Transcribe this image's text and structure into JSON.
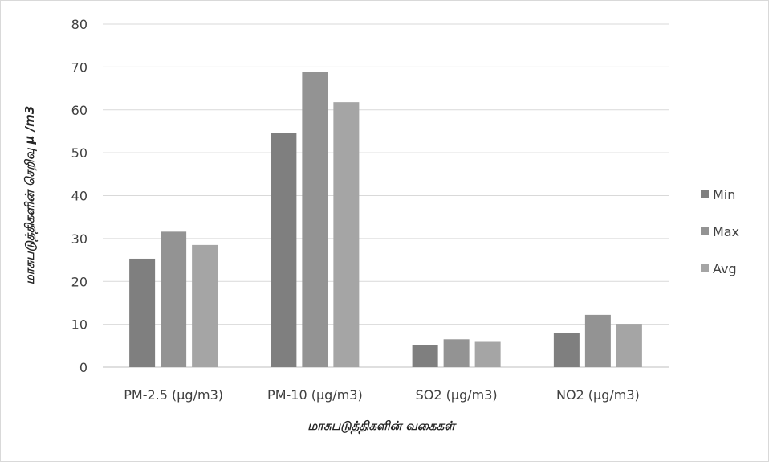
{
  "chart_data": {
    "type": "bar",
    "categories": [
      "PM-2.5  (µg/m3)",
      "PM-10 (µg/m3)",
      "SO2  (µg/m3)",
      "NO2  (µg/m3)"
    ],
    "series": [
      {
        "name": "Min",
        "values": [
          25.3,
          54.7,
          5.2,
          7.9
        ],
        "color": "#7f7f7f"
      },
      {
        "name": "Max",
        "values": [
          31.6,
          68.8,
          6.5,
          12.2
        ],
        "color": "#939393"
      },
      {
        "name": "Avg",
        "values": [
          28.5,
          61.8,
          5.9,
          10.1
        ],
        "color": "#a5a5a5"
      }
    ],
    "xlabel": "மாசுபடுத்திகளின் வகைகள்",
    "ylabel": "மாசுபடுத்திகளின் செறிவு µ /m3",
    "ylim": [
      0,
      80
    ],
    "yticks": [
      0,
      10,
      20,
      30,
      40,
      50,
      60,
      70,
      80
    ],
    "grid": true,
    "legend_position": "right"
  }
}
